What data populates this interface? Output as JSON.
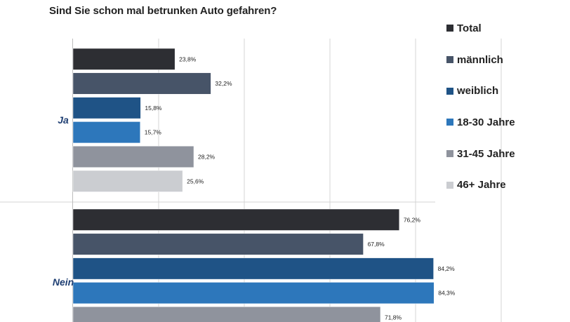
{
  "chart_data": {
    "type": "bar",
    "orientation": "horizontal",
    "title": "Sind Sie schon mal betrunken Auto gefahren?",
    "categories": [
      "Ja",
      "Nein"
    ],
    "xlim": [
      0,
      100
    ],
    "grid": true,
    "legend_position": "right",
    "series": [
      {
        "name": "Total",
        "color": "#2d2e33",
        "values": [
          23.8,
          76.2
        ],
        "labels": [
          "23,8%",
          "76,2%"
        ]
      },
      {
        "name": "männlich",
        "color": "#475468",
        "values": [
          32.2,
          67.8
        ],
        "labels": [
          "32,2%",
          "67,8%"
        ]
      },
      {
        "name": "weiblich",
        "color": "#1f5386",
        "values": [
          15.8,
          84.2
        ],
        "labels": [
          "15,8%",
          "84,2%"
        ]
      },
      {
        "name": "18-30 Jahre",
        "color": "#2d77bb",
        "values": [
          15.7,
          84.3
        ],
        "labels": [
          "15,7%",
          "84,3%"
        ]
      },
      {
        "name": "31-45 Jahre",
        "color": "#8f939d",
        "values": [
          28.2,
          71.8
        ],
        "labels": [
          "28,2%",
          "71,8%"
        ]
      },
      {
        "name": "46+ Jahre",
        "color": "#cbcdd1",
        "values": [
          25.6,
          null
        ],
        "labels": [
          "25,6%",
          null
        ]
      }
    ]
  }
}
